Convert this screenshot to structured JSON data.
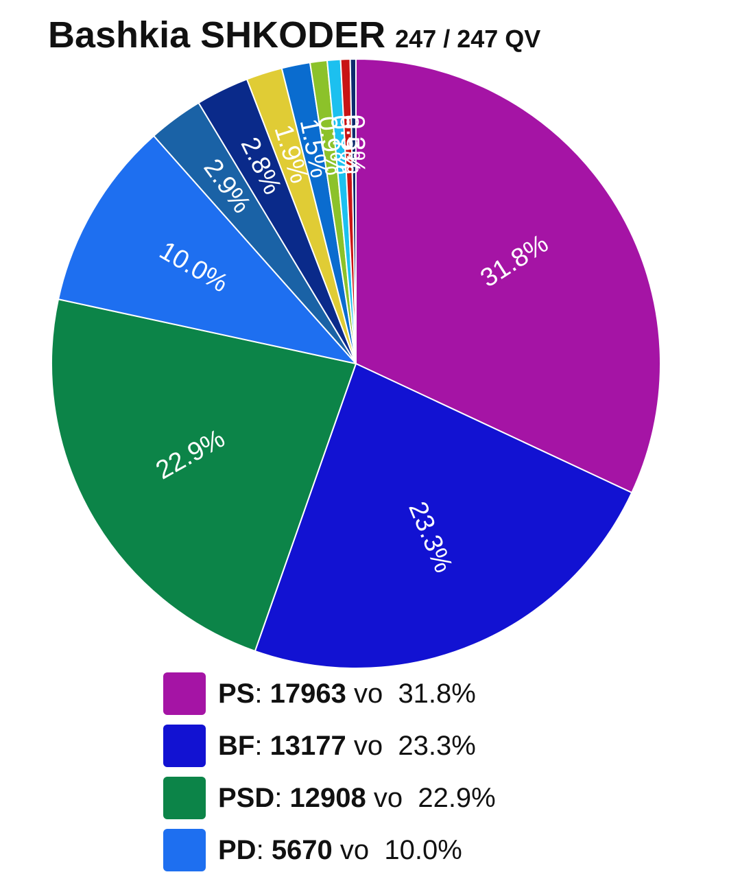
{
  "title": {
    "main": "Bashkia SHKODER",
    "sub": "247 / 247 QV"
  },
  "chart_data": {
    "type": "pie",
    "title": "Bashkia SHKODER",
    "subtitle": "247 / 247 QV",
    "start_angle_deg": 0,
    "slices": [
      {
        "name": "PS",
        "votes": 17963,
        "percent": 31.8,
        "label": "31.8%",
        "color": "#a514a5"
      },
      {
        "name": "BF",
        "votes": 13177,
        "percent": 23.3,
        "label": "23.3%",
        "color": "#1212d2"
      },
      {
        "name": "PSD",
        "votes": 12908,
        "percent": 22.9,
        "label": "22.9%",
        "color": "#0c8448"
      },
      {
        "name": "PD",
        "votes": 5670,
        "percent": 10.0,
        "label": "10.0%",
        "color": "#1e6ff0"
      },
      {
        "percent": 2.9,
        "label": "2.9%",
        "color": "#1a62a6"
      },
      {
        "percent": 2.8,
        "label": "2.8%",
        "color": "#0a2a8a"
      },
      {
        "percent": 1.9,
        "label": "1.9%",
        "color": "#e0cc35"
      },
      {
        "percent": 1.5,
        "label": "1.5%",
        "color": "#0a6ccf"
      },
      {
        "percent": 0.9,
        "label": "0.9%",
        "color": "#8cc22a"
      },
      {
        "percent": 0.7,
        "label": "0.7%",
        "color": "#1cc0ef"
      },
      {
        "percent": 0.5,
        "label": "0.5%",
        "color": "#c81414"
      },
      {
        "percent": 0.3,
        "label": "0.3%",
        "color": "#0e2a6e"
      }
    ]
  },
  "legend": [
    {
      "name": "PS",
      "votes": "17963",
      "unit": "vo",
      "percent": "31.8%",
      "color": "#a514a5"
    },
    {
      "name": "BF",
      "votes": "13177",
      "unit": "vo",
      "percent": "23.3%",
      "color": "#1212d2"
    },
    {
      "name": "PSD",
      "votes": "12908",
      "unit": "vo",
      "percent": "22.9%",
      "color": "#0c8448"
    },
    {
      "name": "PD",
      "votes": "5670",
      "unit": "vo",
      "percent": "10.0%",
      "color": "#1e6ff0"
    }
  ]
}
